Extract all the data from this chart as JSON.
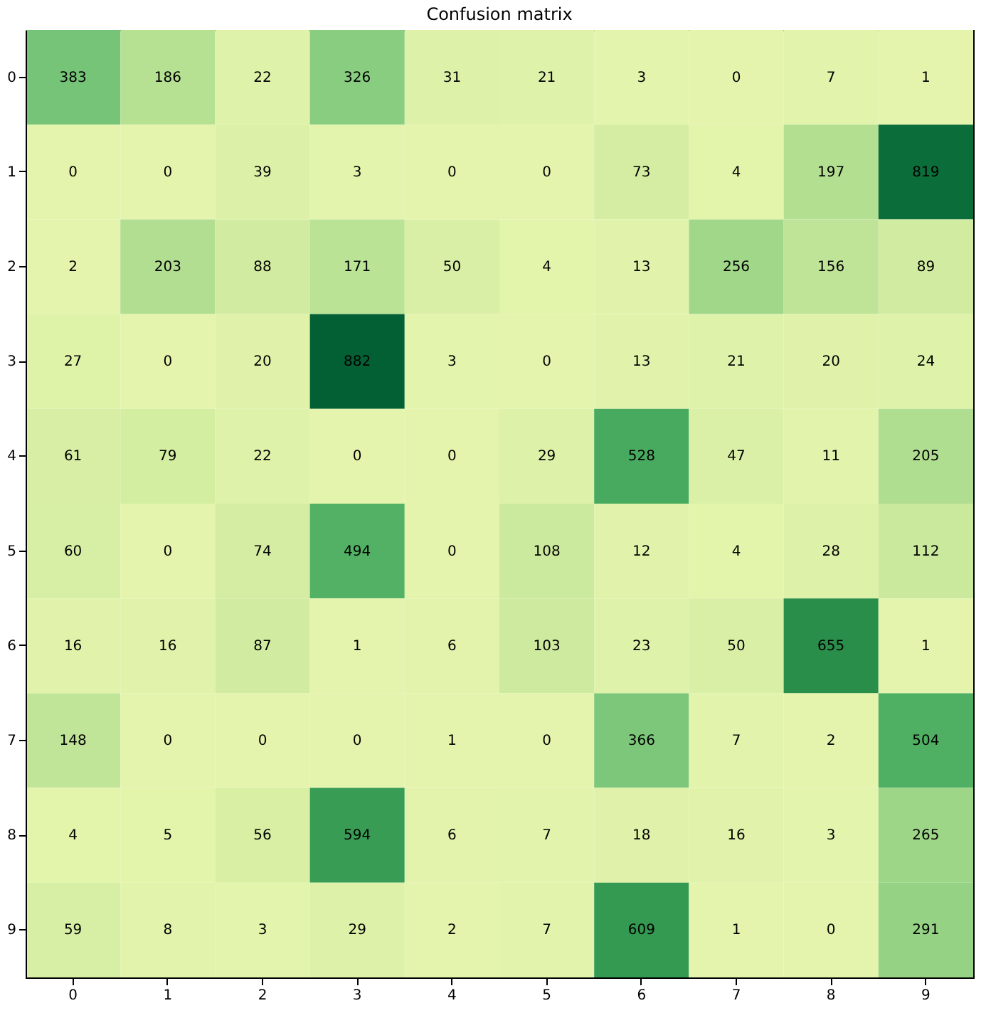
{
  "chart_data": {
    "type": "heatmap",
    "title": "Confusion matrix",
    "categories": [
      "0",
      "1",
      "2",
      "3",
      "4",
      "5",
      "6",
      "7",
      "8",
      "9"
    ],
    "y_categories": [
      "0",
      "1",
      "2",
      "3",
      "4",
      "5",
      "6",
      "7",
      "8",
      "9"
    ],
    "cells": [
      [
        383,
        186,
        22,
        326,
        31,
        21,
        3,
        0,
        7,
        1
      ],
      [
        0,
        0,
        39,
        3,
        0,
        0,
        73,
        4,
        197,
        819
      ],
      [
        2,
        203,
        88,
        171,
        50,
        4,
        13,
        256,
        156,
        89
      ],
      [
        27,
        0,
        20,
        882,
        3,
        0,
        13,
        21,
        20,
        24
      ],
      [
        61,
        79,
        22,
        0,
        0,
        29,
        528,
        47,
        11,
        205
      ],
      [
        60,
        0,
        74,
        494,
        0,
        108,
        12,
        4,
        28,
        112
      ],
      [
        16,
        16,
        87,
        1,
        6,
        103,
        23,
        50,
        655,
        1
      ],
      [
        148,
        0,
        0,
        0,
        1,
        0,
        366,
        7,
        2,
        504
      ],
      [
        4,
        5,
        56,
        594,
        6,
        7,
        18,
        16,
        3,
        265
      ],
      [
        59,
        8,
        3,
        29,
        2,
        7,
        609,
        1,
        0,
        291
      ]
    ],
    "data_labels": true
  }
}
